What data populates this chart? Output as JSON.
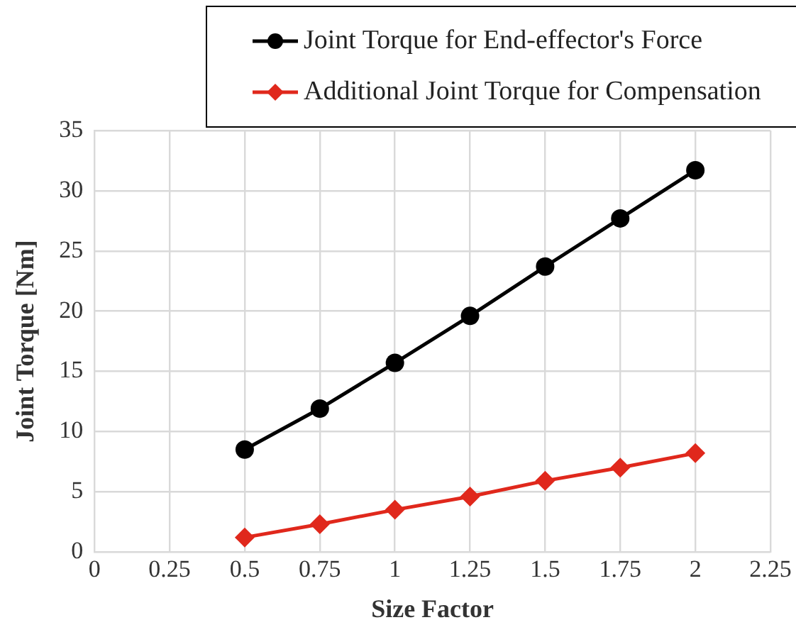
{
  "chart_data": {
    "type": "line",
    "xlabel": "Size Factor",
    "ylabel": "Joint Torque [Nm]",
    "x": [
      0.5,
      0.75,
      1,
      1.25,
      1.5,
      1.75,
      2
    ],
    "series": [
      {
        "name": "Joint Torque for End-effector's Force",
        "color": "#000000",
        "marker": "circle",
        "values": [
          8.5,
          11.9,
          15.7,
          19.6,
          23.7,
          27.7,
          31.7
        ]
      },
      {
        "name": "Additional Joint Torque for Compensation",
        "color": "#e0281c",
        "marker": "diamond",
        "values": [
          1.2,
          2.3,
          3.5,
          4.6,
          5.9,
          7.0,
          8.2
        ]
      }
    ],
    "xlim": [
      0,
      2.25
    ],
    "xticks": [
      0,
      0.25,
      0.5,
      0.75,
      1,
      1.25,
      1.5,
      1.75,
      2,
      2.25
    ],
    "ylim": [
      0,
      35
    ],
    "yticks": [
      0,
      5,
      10,
      15,
      20,
      25,
      30,
      35
    ],
    "grid": true,
    "legend": "top right",
    "line_style": "solid"
  }
}
